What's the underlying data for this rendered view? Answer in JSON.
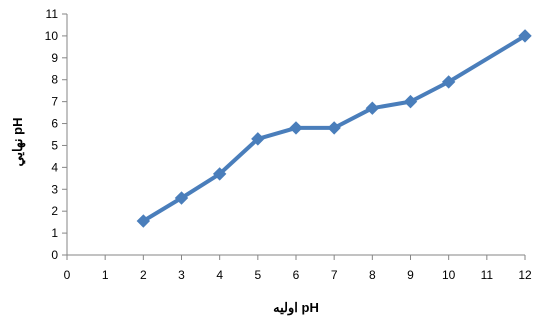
{
  "chart_data": {
    "type": "line",
    "title": "",
    "xlabel": "pH اوليه",
    "ylabel": "pH نهايي",
    "xlim": [
      0,
      12
    ],
    "ylim": [
      0,
      11
    ],
    "x_ticks": [
      0,
      1,
      2,
      3,
      4,
      5,
      6,
      7,
      8,
      9,
      10,
      11,
      12
    ],
    "y_ticks": [
      0,
      1,
      2,
      3,
      4,
      5,
      6,
      7,
      8,
      9,
      10,
      11
    ],
    "grid": false,
    "legend": "none",
    "series": [
      {
        "color": "#4a7ebb",
        "marker": "diamond",
        "x": [
          2,
          3,
          4,
          5,
          6,
          7,
          8,
          9,
          10,
          12
        ],
        "y": [
          1.55,
          2.6,
          3.7,
          5.3,
          5.8,
          5.8,
          6.7,
          7.0,
          7.9,
          10.0
        ]
      }
    ]
  }
}
